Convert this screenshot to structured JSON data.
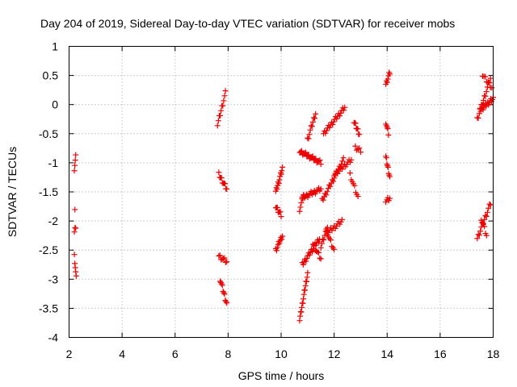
{
  "chart_data": {
    "type": "scatter",
    "title": "Day 204 of 2019, Sidereal Day-to-day VTEC variation (SDTVAR) for receiver mobs",
    "xlabel": "GPS time / hours",
    "ylabel": "SDTVAR / TECUs",
    "xlim": [
      2,
      18
    ],
    "ylim": [
      -4,
      1
    ],
    "xticks": [
      2,
      4,
      6,
      8,
      10,
      12,
      14,
      16,
      18
    ],
    "yticks": [
      -4,
      -3.5,
      -3,
      -2.5,
      -2,
      -1.5,
      -1,
      -0.5,
      0,
      0.5,
      1
    ],
    "ytick_labels": [
      "-4",
      "-3.5",
      "-3",
      "-2.5",
      "-2",
      "-1.5",
      "-1",
      "-0.5",
      "0",
      "0.5",
      "1"
    ],
    "grid": true,
    "marker": "+",
    "color": "#ee0000",
    "segments": [
      {
        "x0": 2.2,
        "x1": 2.25,
        "y0": -1.1,
        "y1": -0.9,
        "n": 4
      },
      {
        "x0": 2.2,
        "x1": 2.25,
        "y0": -2.2,
        "y1": -2.1,
        "n": 3
      },
      {
        "x0": 2.22,
        "x1": 2.22,
        "y0": -1.78,
        "y1": -1.78,
        "n": 1
      },
      {
        "x0": 2.2,
        "x1": 2.27,
        "y0": -2.6,
        "y1": -2.98,
        "n": 5
      },
      {
        "x0": 7.6,
        "x1": 7.9,
        "y0": -0.35,
        "y1": 0.2,
        "n": 10
      },
      {
        "x0": 7.65,
        "x1": 7.95,
        "y0": -1.2,
        "y1": -1.45,
        "n": 10
      },
      {
        "x0": 7.65,
        "x1": 7.95,
        "y0": -2.6,
        "y1": -2.7,
        "n": 8
      },
      {
        "x0": 7.7,
        "x1": 7.95,
        "y0": -3.0,
        "y1": -3.42,
        "n": 10
      },
      {
        "x0": 9.8,
        "x1": 10.05,
        "y0": -1.5,
        "y1": -1.1,
        "n": 12
      },
      {
        "x0": 9.8,
        "x1": 10.0,
        "y0": -1.75,
        "y1": -1.9,
        "n": 8
      },
      {
        "x0": 9.8,
        "x1": 10.05,
        "y0": -2.5,
        "y1": -2.25,
        "n": 10
      },
      {
        "x0": 10.7,
        "x1": 11.0,
        "y0": -3.7,
        "y1": -2.9,
        "n": 16
      },
      {
        "x0": 10.8,
        "x1": 11.45,
        "y0": -2.75,
        "y1": -2.3,
        "n": 20
      },
      {
        "x0": 11.2,
        "x1": 11.5,
        "y0": -2.4,
        "y1": -2.65,
        "n": 8
      },
      {
        "x0": 10.7,
        "x1": 10.85,
        "y0": -1.8,
        "y1": -1.55,
        "n": 6
      },
      {
        "x0": 10.8,
        "x1": 11.5,
        "y0": -1.6,
        "y1": -1.45,
        "n": 18
      },
      {
        "x0": 10.7,
        "x1": 11.5,
        "y0": -0.8,
        "y1": -1.0,
        "n": 22
      },
      {
        "x0": 11.0,
        "x1": 11.3,
        "y0": -0.6,
        "y1": -0.15,
        "n": 10
      },
      {
        "x0": 11.5,
        "x1": 11.75,
        "y0": -2.45,
        "y1": -2.1,
        "n": 8
      },
      {
        "x0": 11.55,
        "x1": 12.35,
        "y0": -1.65,
        "y1": -0.95,
        "n": 22
      },
      {
        "x0": 11.6,
        "x1": 12.4,
        "y0": -0.5,
        "y1": -0.05,
        "n": 22
      },
      {
        "x0": 11.75,
        "x1": 12.3,
        "y0": -2.2,
        "y1": -2.0,
        "n": 14
      },
      {
        "x0": 11.7,
        "x1": 12.0,
        "y0": -2.15,
        "y1": -2.5,
        "n": 8
      },
      {
        "x0": 12.0,
        "x1": 12.65,
        "y0": -1.2,
        "y1": -0.95,
        "n": 16
      },
      {
        "x0": 12.6,
        "x1": 12.9,
        "y0": -1.2,
        "y1": -1.6,
        "n": 8
      },
      {
        "x0": 12.75,
        "x1": 12.95,
        "y0": -0.3,
        "y1": -0.5,
        "n": 8
      },
      {
        "x0": 12.8,
        "x1": 13.0,
        "y0": -0.75,
        "y1": -0.78,
        "n": 5
      },
      {
        "x0": 13.95,
        "x1": 14.1,
        "y0": 0.35,
        "y1": 0.55,
        "n": 7
      },
      {
        "x0": 13.95,
        "x1": 14.05,
        "y0": -0.3,
        "y1": -0.5,
        "n": 5
      },
      {
        "x0": 13.95,
        "x1": 14.1,
        "y0": -0.9,
        "y1": -1.25,
        "n": 8
      },
      {
        "x0": 13.95,
        "x1": 14.1,
        "y0": -1.65,
        "y1": -1.6,
        "n": 5
      },
      {
        "x0": 17.4,
        "x1": 17.9,
        "y0": -0.25,
        "y1": 0.45,
        "n": 14
      },
      {
        "x0": 17.6,
        "x1": 17.95,
        "y0": 0.5,
        "y1": 0.3,
        "n": 8
      },
      {
        "x0": 17.5,
        "x1": 18.0,
        "y0": -0.1,
        "y1": 0.1,
        "n": 18
      },
      {
        "x0": 17.4,
        "x1": 17.9,
        "y0": -2.3,
        "y1": -1.7,
        "n": 14
      },
      {
        "x0": 17.55,
        "x1": 17.75,
        "y0": -1.95,
        "y1": -2.25,
        "n": 6
      }
    ]
  }
}
